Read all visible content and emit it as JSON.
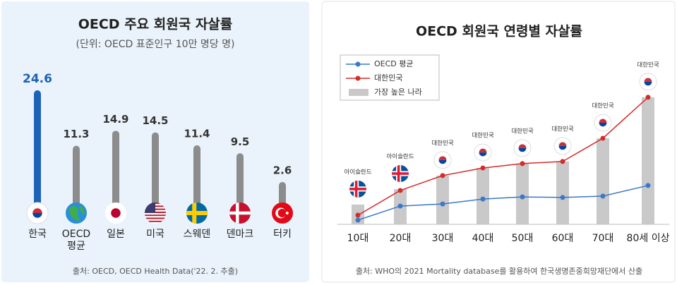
{
  "chart_data": [
    {
      "type": "bar",
      "title": "OECD 주요 회원국 자살률",
      "subtitle": "(단위: OECD 표준인구 10만 명당 명)",
      "categories": [
        "한국",
        "OECD\n평균",
        "일본",
        "미국",
        "스웨덴",
        "덴마크",
        "터키"
      ],
      "values": [
        24.6,
        11.3,
        14.9,
        14.5,
        11.4,
        9.5,
        2.6
      ],
      "colors": [
        "#1d62b8",
        "#8c8c8c",
        "#8c8c8c",
        "#8c8c8c",
        "#8c8c8c",
        "#8c8c8c",
        "#8c8c8c"
      ],
      "source": "출처: OECD, OECD Health Data('22. 2. 추출)"
    },
    {
      "type": "line",
      "title": "OECD 회원국 연령별 자살률",
      "categories": [
        "10대",
        "20대",
        "30대",
        "40대",
        "50대",
        "60대",
        "70대",
        "80세 이상"
      ],
      "series": [
        {
          "name": "OECD 평균",
          "color": "#3a78c9",
          "kind": "line",
          "values": [
            2.2,
            9.6,
            10.7,
            13.3,
            14.4,
            14.1,
            14.8,
            20.4
          ]
        },
        {
          "name": "대한민국",
          "color": "#d62b2b",
          "kind": "line",
          "values": [
            4.8,
            17.8,
            25.6,
            29.6,
            31.9,
            33.0,
            45.2,
            66.7
          ]
        },
        {
          "name": "가장 높은 나라",
          "color": "#c9c9c9",
          "kind": "bar",
          "values": [
            10.4,
            18.5,
            25.6,
            29.6,
            31.9,
            33.0,
            45.2,
            66.7
          ]
        }
      ],
      "annotations": [
        "아이슬란드",
        "아이슬란드",
        "대한민국",
        "대한민국",
        "대한민국",
        "대한민국",
        "대한민국",
        "대한민국"
      ],
      "source": "출처: WHO의 2021 Mortality database를 활용하여 한국생명존중희망재단에서 산출"
    }
  ]
}
